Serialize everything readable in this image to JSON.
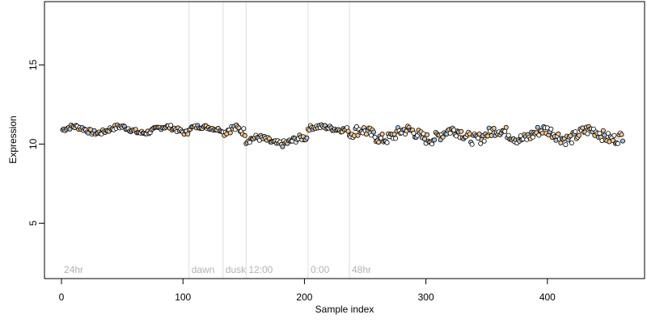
{
  "chart_data": {
    "type": "scatter",
    "title": "",
    "xlabel": "Sample index",
    "ylabel": "Expression",
    "xlim": [
      -14,
      480
    ],
    "ylim": [
      1.5,
      19
    ],
    "xticks": [
      0,
      100,
      200,
      300,
      400
    ],
    "yticks": [
      5,
      10,
      15
    ],
    "grid": false,
    "legend": "none",
    "colors": {
      "point_fill_1": "#f5c48a",
      "point_fill_2": "#9ec4ea",
      "point_fill_3": "#ffffff",
      "point_stroke": "#000000",
      "trend_line_1": "#f5c48a",
      "trend_line_2": "#9ec4ea",
      "vline": "#dddddd",
      "annotation": "#b3b3b3"
    },
    "annotations": [
      {
        "x": 0,
        "label": "24hr"
      },
      {
        "x": 105,
        "label": "dawn"
      },
      {
        "x": 133,
        "label": "dusk"
      },
      {
        "x": 152,
        "label": "12:00"
      },
      {
        "x": 203,
        "label": "0:00"
      },
      {
        "x": 237,
        "label": "48hr"
      }
    ],
    "segments": [
      {
        "x_start": 1,
        "x_end": 104,
        "mean": 10.9,
        "amp": 0.2,
        "noise": 0.15
      },
      {
        "x_start": 105,
        "x_end": 132,
        "mean": 11.0,
        "amp": 0.1,
        "noise": 0.12
      },
      {
        "x_start": 133,
        "x_end": 151,
        "mean": 10.7,
        "amp": 0.3,
        "noise": 0.25
      },
      {
        "x_start": 152,
        "x_end": 202,
        "mean": 10.2,
        "amp": 0.2,
        "noise": 0.2
      },
      {
        "x_start": 203,
        "x_end": 236,
        "mean": 11.0,
        "amp": 0.1,
        "noise": 0.15
      },
      {
        "x_start": 237,
        "x_end": 462,
        "mean": 10.6,
        "amp": 0.3,
        "noise": 0.35
      }
    ]
  }
}
